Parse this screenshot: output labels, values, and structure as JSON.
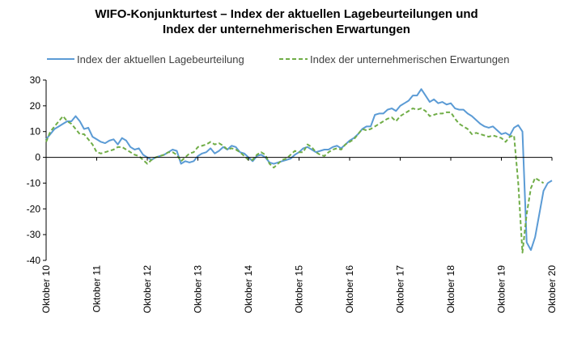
{
  "chart_data": {
    "type": "line",
    "title_line1": "WIFO-Konjunkturtest – Index der aktuellen Lagebeurteilungen und",
    "title_line2": "Index der unternehmerischen Erwartungen",
    "xlabel": "",
    "ylabel": "",
    "ylim": [
      -40,
      30
    ],
    "yticks": [
      "30",
      "20",
      "10",
      "0",
      "-10",
      "-20",
      "-30",
      "-40"
    ],
    "ytick_values": [
      30,
      20,
      10,
      0,
      -10,
      -20,
      -30,
      -40
    ],
    "xticks": [
      "Oktober 10",
      "Oktober 11",
      "Oktober 12",
      "Oktober 13",
      "Oktober 14",
      "Oktober 15",
      "Oktober 16",
      "Oktober 17",
      "Oktober 18",
      "Oktober 19",
      "Oktober 20"
    ],
    "x_start": "2010-10",
    "x_end": "2020-10",
    "grid": false,
    "legend_position": "top",
    "series": [
      {
        "name": "Index der aktuellen Lagebeurteilung",
        "color": "#5b9bd5",
        "dash": "solid",
        "values": [
          7,
          9,
          11,
          12,
          13,
          14,
          14,
          16,
          14,
          11,
          11.5,
          8,
          7,
          6,
          5.5,
          6.5,
          7,
          5,
          7.5,
          6.5,
          4,
          3,
          3.5,
          1,
          0,
          -1,
          0,
          0.5,
          1,
          2,
          3,
          2.5,
          -2.5,
          -1.5,
          -2,
          -1.5,
          0.5,
          1.5,
          2,
          3.5,
          1.5,
          2.5,
          4,
          3,
          4.5,
          4,
          2,
          1.5,
          0,
          -1.5,
          0.5,
          1,
          0,
          -2,
          -2.5,
          -2,
          -1.5,
          -1,
          -0.5,
          1,
          2,
          3.5,
          4,
          3,
          2,
          2.5,
          3,
          3,
          4,
          4.5,
          3.5,
          5,
          6.5,
          7.5,
          9,
          11,
          12,
          12,
          16.5,
          17,
          17,
          18.5,
          19,
          18,
          20,
          21,
          22,
          24,
          24,
          26.5,
          24,
          21.5,
          22.5,
          21,
          21.5,
          20.5,
          21,
          19,
          18.5,
          18.5,
          17,
          16,
          14.5,
          13,
          12,
          11.5,
          12,
          10.5,
          9,
          9.5,
          8.5,
          11.5,
          12.5,
          10,
          -33,
          -36,
          -31,
          -22,
          -13,
          -10,
          -9
        ]
      },
      {
        "name": "Index der unternehmerischen Erwartungen",
        "color": "#70ad47",
        "dash": "dashed",
        "values": [
          6,
          10,
          12,
          14,
          16,
          14,
          13,
          11,
          9,
          9,
          7,
          5,
          2,
          1.5,
          2,
          2.5,
          3,
          4,
          4,
          3,
          2,
          1,
          0.5,
          -1,
          -2.5,
          -1,
          0,
          0.5,
          1,
          2,
          2,
          1,
          -1.5,
          0,
          1.5,
          2,
          4,
          4.5,
          5,
          6,
          5,
          5.5,
          4.5,
          3,
          3.5,
          3,
          2,
          0.5,
          -1,
          -1,
          1,
          2,
          1,
          -2.5,
          -4,
          -2.5,
          -1,
          -0.5,
          1,
          2.5,
          2,
          2,
          5,
          4,
          2,
          1,
          0.5,
          2,
          3,
          3.5,
          3,
          5,
          6,
          7,
          9,
          11,
          10.5,
          11,
          12,
          13,
          14,
          15,
          15.5,
          14,
          16,
          17,
          18,
          19,
          18.5,
          19,
          18,
          16,
          16.5,
          17,
          17,
          17.5,
          17.5,
          15,
          13,
          12,
          11,
          9,
          9.5,
          9,
          8.5,
          8,
          8.5,
          8,
          7.5,
          6,
          8,
          8.5,
          -10,
          -37,
          -22,
          -12,
          -8,
          -9,
          -10
        ]
      }
    ]
  }
}
